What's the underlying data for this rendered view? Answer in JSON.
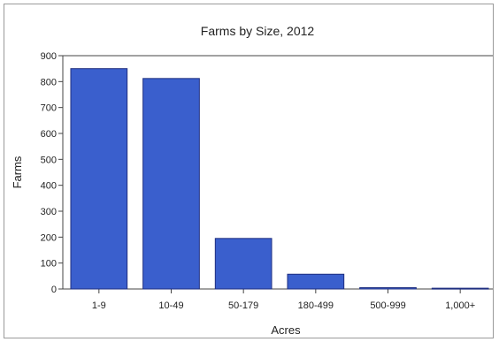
{
  "chart_data": {
    "type": "bar",
    "title": "Farms by Size, 2012",
    "xlabel": "Acres",
    "ylabel": "Farms",
    "categories": [
      "1-9",
      "10-49",
      "50-179",
      "180-499",
      "500-999",
      "1,000+"
    ],
    "values": [
      850,
      812,
      195,
      57,
      5,
      3
    ],
    "ylim": [
      0,
      900
    ],
    "yticks": [
      0,
      100,
      200,
      300,
      400,
      500,
      600,
      700,
      800,
      900
    ],
    "grid": false,
    "legend": "none",
    "bar_color": "#3a5fcd",
    "bar_edge_color": "#1f2f80"
  }
}
